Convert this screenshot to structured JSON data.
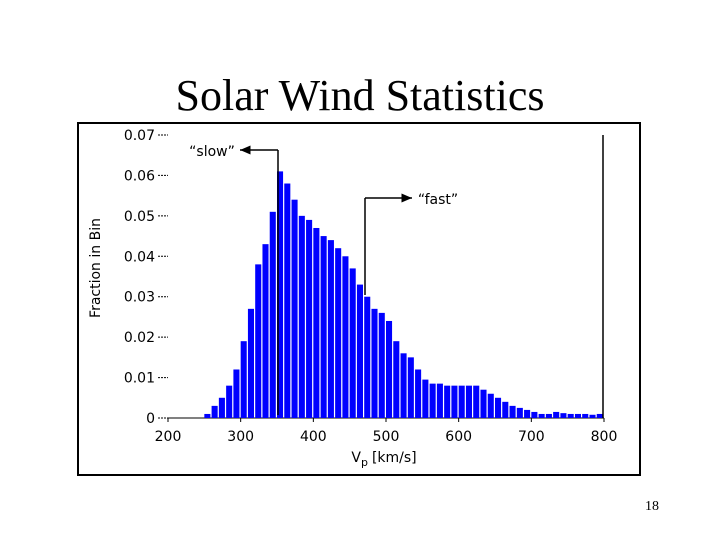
{
  "chart_data": {
    "type": "histogram",
    "title": "Solar Wind Statistics",
    "ylabel": "Fraction in Bin",
    "xlabel_main": "V",
    "xlabel_sub": "p",
    "xlabel_unit": "[km/s]",
    "annotations": [
      "“slow”",
      "“fast”"
    ],
    "color": "#0000ff",
    "bins": [
      250,
      260,
      270,
      280,
      290,
      300,
      310,
      320,
      330,
      340,
      350,
      360,
      370,
      380,
      390,
      400,
      410,
      420,
      430,
      440,
      450,
      460,
      470,
      480,
      490,
      500,
      510,
      520,
      530,
      540,
      550,
      560,
      570,
      580,
      590,
      600,
      610,
      620,
      630,
      640,
      650,
      660,
      670,
      680,
      690,
      700,
      710,
      720,
      730,
      740,
      750,
      760,
      770,
      780,
      790,
      800
    ],
    "values": [
      0.001,
      0.003,
      0.005,
      0.008,
      0.012,
      0.019,
      0.027,
      0.038,
      0.043,
      0.051,
      0.061,
      0.058,
      0.054,
      0.05,
      0.049,
      0.047,
      0.045,
      0.044,
      0.042,
      0.04,
      0.037,
      0.033,
      0.03,
      0.027,
      0.026,
      0.024,
      0.019,
      0.016,
      0.015,
      0.012,
      0.0095,
      0.0085,
      0.0085,
      0.008,
      0.008,
      0.008,
      0.008,
      0.008,
      0.007,
      0.006,
      0.005,
      0.004,
      0.003,
      0.0025,
      0.002,
      0.0015,
      0.001,
      0.001,
      0.0015,
      0.0012,
      0.001,
      0.001,
      0.001,
      0.0008,
      0.001
    ],
    "xlim": [
      200,
      800
    ],
    "xticks": [
      200,
      300,
      400,
      500,
      600,
      700,
      800
    ],
    "ylim": [
      0,
      0.07
    ],
    "yticks": [
      0,
      0.01,
      0.02,
      0.03,
      0.04,
      0.05,
      0.06,
      0.07
    ]
  },
  "page_number": "18"
}
